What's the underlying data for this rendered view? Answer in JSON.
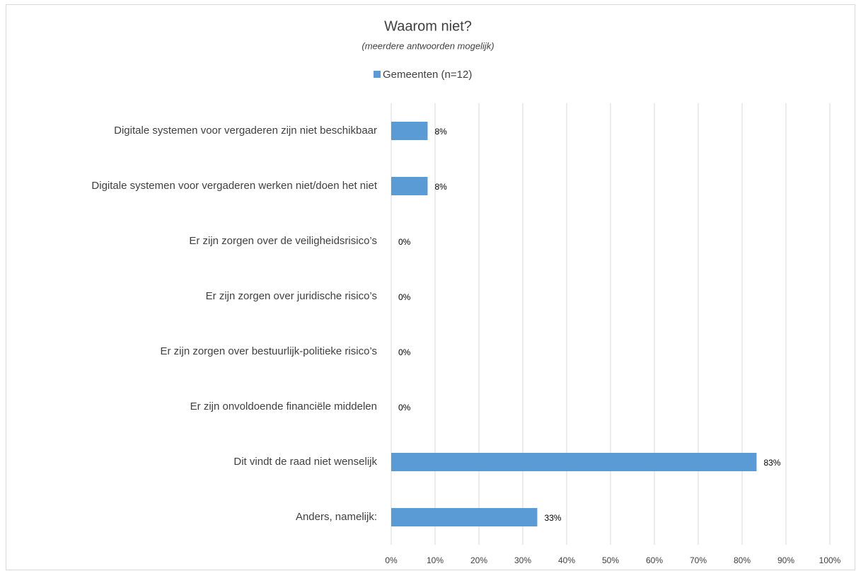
{
  "chart_data": {
    "type": "bar",
    "orientation": "horizontal",
    "title": "Waarom niet?",
    "subtitle": "(meerdere antwoorden mogelijk)",
    "categories": [
      "Digitale systemen voor vergaderen zijn niet beschikbaar",
      "Digitale systemen voor vergaderen werken niet/doen het niet",
      "Er zijn zorgen over de veiligheidsrisico’s",
      "Er zijn zorgen over juridische risico’s",
      "Er zijn zorgen over bestuurlijk-politieke risico’s",
      "Er zijn onvoldoende financiële middelen",
      "Dit vindt de raad niet wenselijk",
      "Anders, namelijk:"
    ],
    "series": [
      {
        "name": "Gemeenten (n=12)",
        "color": "#5b9bd5",
        "values": [
          8.3,
          8.3,
          0,
          0,
          0,
          0,
          83.3,
          33.3
        ],
        "value_labels": [
          "8%",
          "8%",
          "0%",
          "0%",
          "0%",
          "0%",
          "83%",
          "33%"
        ]
      }
    ],
    "xlim": [
      0,
      100
    ],
    "xticks": [
      {
        "value": 0,
        "label": "0%"
      },
      {
        "value": 10,
        "label": "10%"
      },
      {
        "value": 20,
        "label": "20%"
      },
      {
        "value": 30,
        "label": "30%"
      },
      {
        "value": 40,
        "label": "40%"
      },
      {
        "value": 50,
        "label": "50%"
      },
      {
        "value": 60,
        "label": "60%"
      },
      {
        "value": 70,
        "label": "70%"
      },
      {
        "value": 80,
        "label": "80%"
      },
      {
        "value": 90,
        "label": "90%"
      },
      {
        "value": 100,
        "label": "100%"
      }
    ],
    "grid": true,
    "legend": "top"
  }
}
